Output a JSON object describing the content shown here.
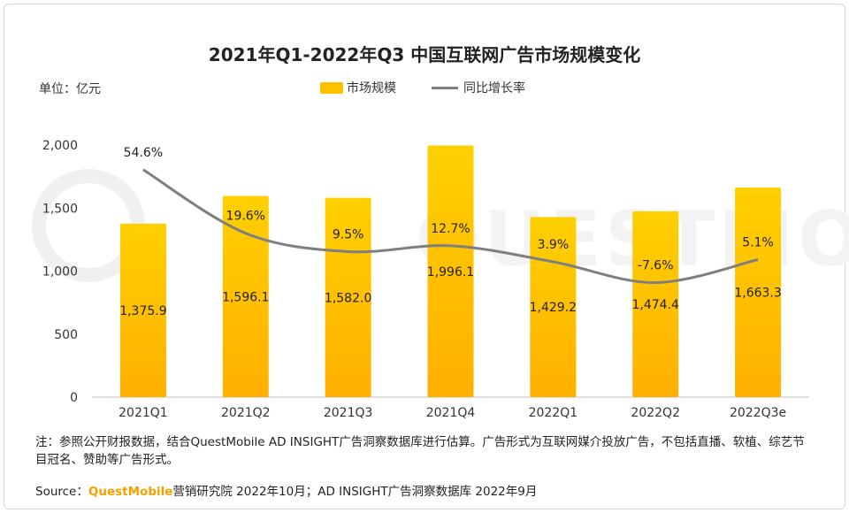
{
  "title": "2021年Q1-2022年Q3 中国互联网广告市场规模变化",
  "unit_label": "单位：亿元",
  "legend": {
    "bar": "市场规模",
    "line": "同比增长率"
  },
  "watermark": "QUESTMOBILE",
  "note": "注：参照公开财报数据，结合QuestMobile AD INSIGHT广告洞察数据库进行估算。广告形式为互联网媒介投放广告，不包括直播、软植、综艺节目冠名、赞助等广告形式。",
  "source": {
    "prefix": "Source：",
    "brand": "QuestMobile",
    "rest": "营销研究院 2022年10月；AD INSIGHT广告洞察数据库 2022年9月"
  },
  "chart_data": {
    "type": "bar",
    "categories": [
      "2021Q1",
      "2021Q2",
      "2021Q3",
      "2021Q4",
      "2022Q1",
      "2022Q2",
      "2022Q3e"
    ],
    "series": [
      {
        "name": "市场规模",
        "type": "bar",
        "values": [
          1375.9,
          1596.1,
          1582.0,
          1996.1,
          1429.2,
          1474.4,
          1663.3
        ],
        "labels": [
          "1,375.9",
          "1,596.1",
          "1,582.0",
          "1,996.1",
          "1,429.2",
          "1,474.4",
          "1,663.3"
        ]
      },
      {
        "name": "同比增长率",
        "type": "line",
        "values": [
          54.6,
          19.6,
          9.5,
          12.7,
          3.9,
          -7.6,
          5.1
        ],
        "labels": [
          "54.6%",
          "19.6%",
          "9.5%",
          "12.7%",
          "3.9%",
          "-7.6%",
          "5.1%"
        ]
      }
    ],
    "y_ticks": [
      "0",
      "500",
      "1,000",
      "1,500",
      "2,000"
    ],
    "ylim": [
      0,
      2000
    ],
    "colors": {
      "bar_top": "#FFD000",
      "bar_bottom": "#FFB000",
      "line": "#7F7F7F"
    },
    "grid": false,
    "legend_position": "top"
  }
}
